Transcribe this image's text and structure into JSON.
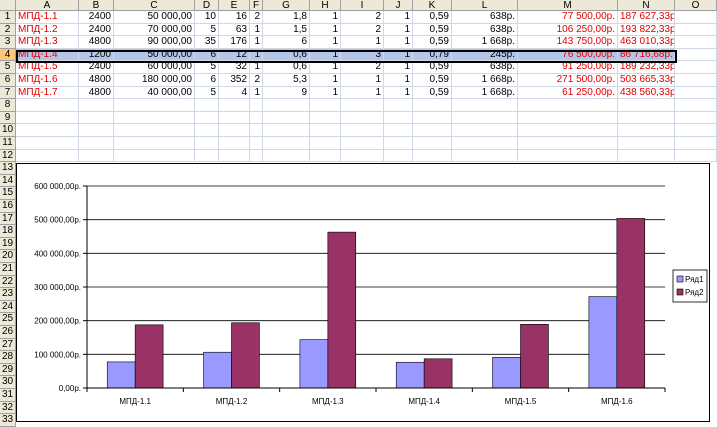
{
  "sheet": {
    "columns": [
      "A",
      "B",
      "C",
      "D",
      "E",
      "F",
      "G",
      "H",
      "I",
      "J",
      "K",
      "L",
      "M",
      "N",
      "O"
    ],
    "selected_row": 4,
    "rows": [
      [
        "МПД-1.1",
        "2400",
        "50 000,00",
        "10",
        "16",
        "2",
        "1,8",
        "1",
        "2",
        "1",
        "0,59",
        "638р.",
        "77 500,00р.",
        "187 627,33р."
      ],
      [
        "МПД-1.2",
        "2400",
        "70 000,00",
        "5",
        "63",
        "1",
        "1,5",
        "1",
        "2",
        "1",
        "0,59",
        "638р.",
        "106 250,00р.",
        "193 822,33р."
      ],
      [
        "МПД-1.3",
        "4800",
        "90 000,00",
        "35",
        "176",
        "1",
        "6",
        "1",
        "1",
        "1",
        "0,59",
        "1 668р.",
        "143 750,00р.",
        "463 010,33р."
      ],
      [
        "МПД-1.4",
        "1200",
        "50 000,00",
        "6",
        "12",
        "1",
        "0,6",
        "1",
        "3",
        "1",
        "0,79",
        "245р.",
        "76 500,00р.",
        "86 716,68р."
      ],
      [
        "МПД-1.5",
        "2400",
        "60 000,00",
        "5",
        "32",
        "1",
        "0,6",
        "1",
        "2",
        "1",
        "0,59",
        "638р.",
        "91 250,00р.",
        "189 232,33р."
      ],
      [
        "МПД-1.6",
        "4800",
        "180 000,00",
        "6",
        "352",
        "2",
        "5,3",
        "1",
        "1",
        "1",
        "0,59",
        "1 668р.",
        "271 500,00р.",
        "503 665,33р."
      ],
      [
        "МПД-1.7",
        "4800",
        "40 000,00",
        "5",
        "4",
        "1",
        "9",
        "1",
        "1",
        "1",
        "0,59",
        "1 668р.",
        "61 250,00р.",
        "438 560,33р."
      ]
    ],
    "row_numbers": [
      "1",
      "2",
      "3",
      "4",
      "5",
      "6",
      "7",
      "8",
      "9",
      "10",
      "11",
      "12",
      "13",
      "14",
      "15",
      "16",
      "17",
      "18",
      "19",
      "20",
      "21",
      "22",
      "23",
      "24",
      "25",
      "26",
      "27",
      "28",
      "29",
      "30",
      "31",
      "32",
      "33"
    ]
  },
  "chart_data": {
    "type": "bar",
    "categories": [
      "МПД-1.1",
      "МПД-1.2",
      "МПД-1.3",
      "МПД-1.4",
      "МПД-1.5",
      "МПД-1.6"
    ],
    "series": [
      {
        "name": "Ряд1",
        "color": "#9999ff",
        "values": [
          77500,
          106250,
          143750,
          76500,
          91250,
          271500
        ]
      },
      {
        "name": "Ряд2",
        "color": "#993366",
        "values": [
          187627.33,
          193822.33,
          463010.33,
          86716.68,
          189232.33,
          503665.33
        ]
      }
    ],
    "ylim": [
      0,
      600000
    ],
    "yticks": [
      0,
      100000,
      200000,
      300000,
      400000,
      500000,
      600000
    ],
    "ytick_labels": [
      "0,00р.",
      "100 000,00р.",
      "200 000,00р.",
      "300 000,00р.",
      "400 000,00р.",
      "500 000,00р.",
      "600 000,00р."
    ],
    "grid": true,
    "legend_position": "right"
  }
}
